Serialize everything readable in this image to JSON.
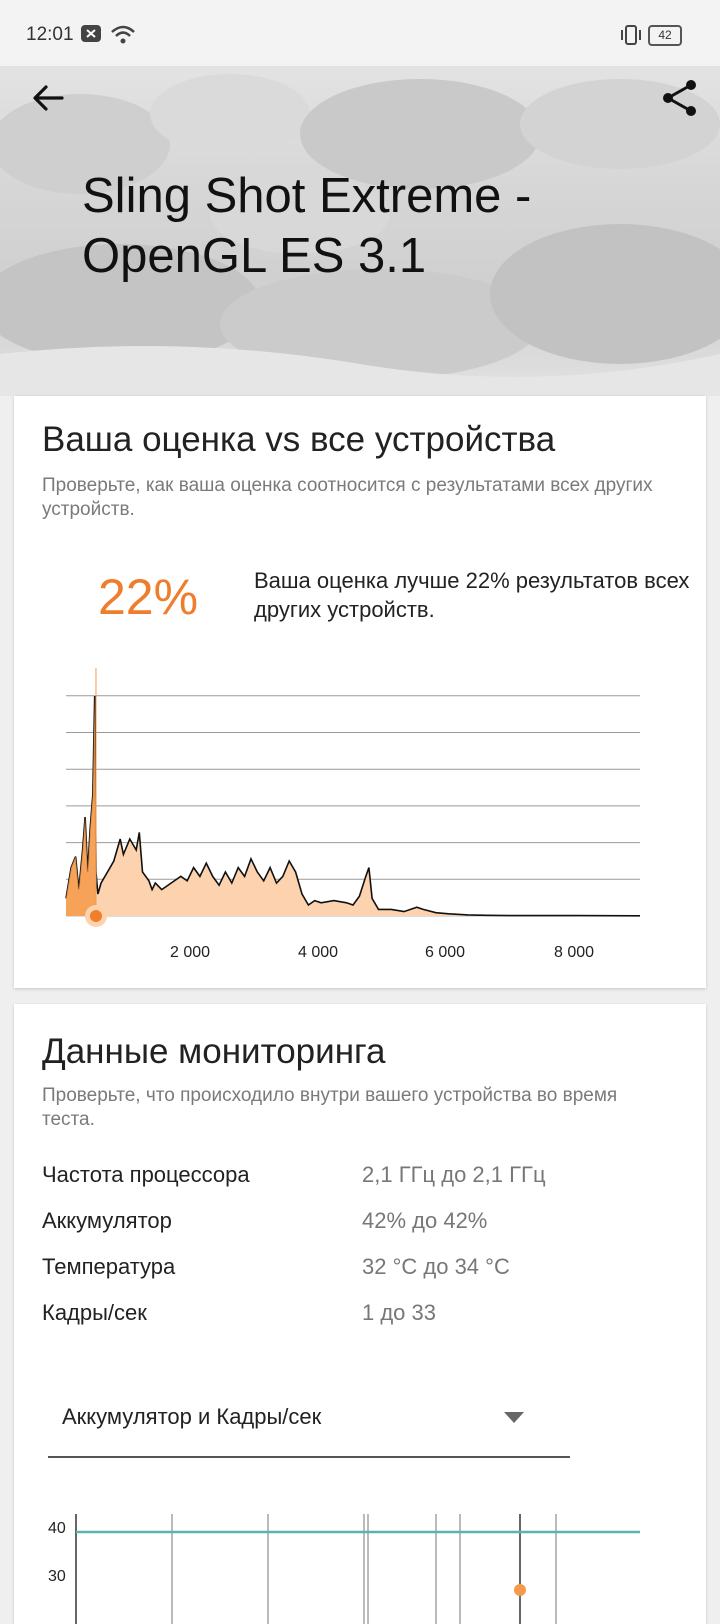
{
  "status_bar": {
    "time": "12:01",
    "battery_level": "42"
  },
  "header": {
    "title": "Sling Shot Extreme - OpenGL ES 3.1"
  },
  "comparison": {
    "title": "Ваша оценка vs все устройства",
    "subtitle": "Проверьте, как ваша оценка соотносится с результатами всех других устройств.",
    "percent": "22%",
    "percent_text": "Ваша оценка лучше 22% результатов всех других устройств."
  },
  "monitoring": {
    "title": "Данные мониторинга",
    "subtitle": "Проверьте, что происходило внутри вашего устройства во время теста.",
    "rows": [
      {
        "label": "Частота процессора",
        "value": "2,1 ГГц до 2,1 ГГц"
      },
      {
        "label": "Аккумулятор",
        "value": "42% до 42%"
      },
      {
        "label": "Температура",
        "value": "32 °C до 34 °C"
      },
      {
        "label": "Кадры/сек",
        "value": "1 до 33"
      }
    ],
    "dropdown_selected": "Аккумулятор и Кадры/сек",
    "chart_ticks": [
      "40",
      "30"
    ]
  },
  "chart_data": {
    "type": "area",
    "title": "",
    "xlabel": "",
    "ylabel": "",
    "xlim": [
      0,
      9000
    ],
    "x_ticks": [
      "2 000",
      "4 000",
      "6 000",
      "8 000"
    ],
    "grid": true,
    "accent_color": "#f59a4a",
    "fill_color": "#fcd3ae",
    "user_score": 470,
    "x": [
      0,
      80,
      150,
      200,
      260,
      300,
      340,
      380,
      420,
      450,
      470,
      500,
      550,
      650,
      750,
      850,
      900,
      1000,
      1100,
      1150,
      1200,
      1300,
      1350,
      1400,
      1500,
      1650,
      1800,
      1900,
      2000,
      2100,
      2200,
      2300,
      2400,
      2500,
      2600,
      2700,
      2800,
      2900,
      3000,
      3100,
      3200,
      3300,
      3400,
      3500,
      3600,
      3700,
      3800,
      3900,
      4000,
      4200,
      4400,
      4500,
      4600,
      4700,
      4750,
      4800,
      4900,
      5100,
      5300,
      5500,
      5600,
      5800,
      6000,
      6300,
      6600,
      7000,
      8000,
      9000
    ],
    "y": [
      0.08,
      0.22,
      0.27,
      0.12,
      0.3,
      0.45,
      0.2,
      0.4,
      0.55,
      1.0,
      0.2,
      0.1,
      0.15,
      0.2,
      0.25,
      0.35,
      0.28,
      0.35,
      0.3,
      0.38,
      0.2,
      0.16,
      0.12,
      0.15,
      0.12,
      0.15,
      0.18,
      0.16,
      0.22,
      0.18,
      0.24,
      0.18,
      0.14,
      0.2,
      0.15,
      0.22,
      0.18,
      0.26,
      0.2,
      0.16,
      0.22,
      0.15,
      0.18,
      0.25,
      0.2,
      0.1,
      0.05,
      0.07,
      0.06,
      0.07,
      0.06,
      0.05,
      0.09,
      0.18,
      0.22,
      0.08,
      0.03,
      0.03,
      0.02,
      0.04,
      0.03,
      0.015,
      0.01,
      0.005,
      0.003,
      0.002,
      0.002,
      0.001
    ]
  }
}
